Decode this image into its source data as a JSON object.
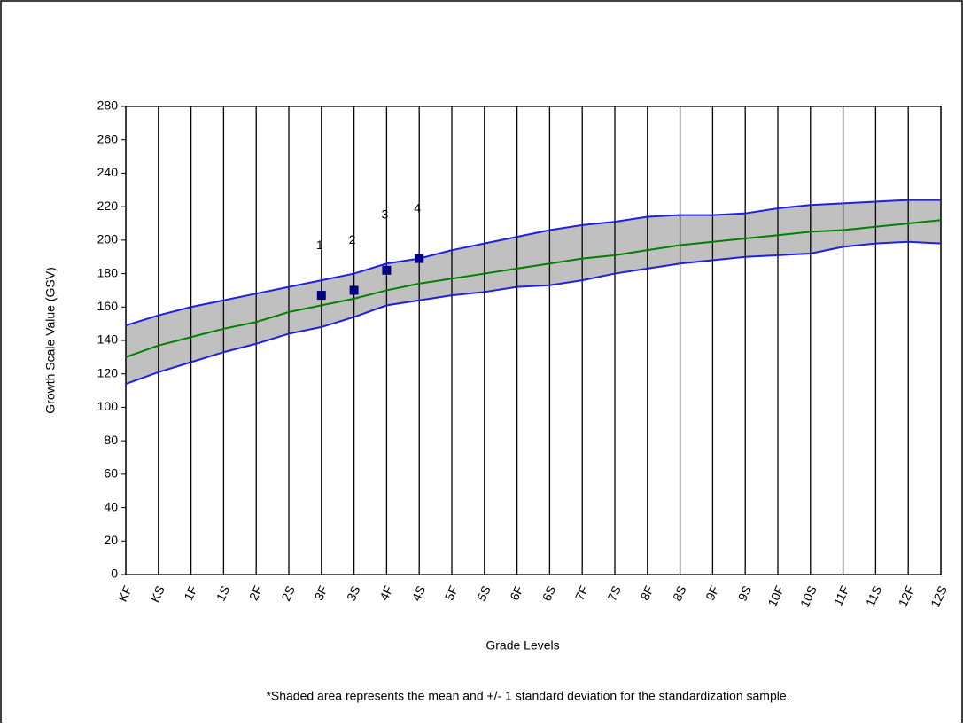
{
  "chart_data": {
    "type": "band-line",
    "y_label": "Growth Scale Value (GSV)",
    "x_label": "Grade Levels",
    "footnote": "*Shaded area represents the mean and +/- 1 standard deviation for the standardization sample.",
    "categories": [
      "KF",
      "KS",
      "1F",
      "1S",
      "2F",
      "2S",
      "3F",
      "3S",
      "4F",
      "4S",
      "5F",
      "5S",
      "6F",
      "6S",
      "7F",
      "7S",
      "8F",
      "8S",
      "9F",
      "9S",
      "10F",
      "10S",
      "11F",
      "11S",
      "12F",
      "12S"
    ],
    "band_color": "#c0c0c0",
    "series": [
      {
        "name": "+1 SD",
        "color": "#1f1fe0",
        "values": [
          149,
          155,
          160,
          164,
          168,
          172,
          176,
          180,
          186,
          189,
          194,
          198,
          202,
          206,
          209,
          211,
          214,
          215,
          215,
          216,
          219,
          221,
          222,
          223,
          224,
          224
        ]
      },
      {
        "name": "Mean",
        "color": "#008000",
        "values": [
          130,
          137,
          142,
          147,
          151,
          157,
          161,
          165,
          170,
          174,
          177,
          180,
          183,
          186,
          189,
          191,
          194,
          197,
          199,
          201,
          203,
          205,
          206,
          208,
          210,
          212
        ]
      },
      {
        "name": "-1 SD",
        "color": "#1f1fe0",
        "values": [
          114,
          121,
          127,
          133,
          138,
          144,
          148,
          154,
          161,
          164,
          167,
          169,
          172,
          173,
          176,
          180,
          183,
          186,
          188,
          190,
          191,
          192,
          196,
          198,
          199,
          198
        ]
      }
    ],
    "points": {
      "color": "#000080",
      "categories": [
        "3F",
        "3S",
        "4F",
        "4S"
      ],
      "labels": [
        "1",
        "2",
        "3",
        "4"
      ],
      "values": [
        167,
        170,
        182,
        189
      ]
    },
    "ylim": [
      0,
      280
    ],
    "yticks": [
      0,
      20,
      40,
      60,
      80,
      100,
      120,
      140,
      160,
      180,
      200,
      220,
      240,
      260,
      280
    ],
    "grid": true
  }
}
